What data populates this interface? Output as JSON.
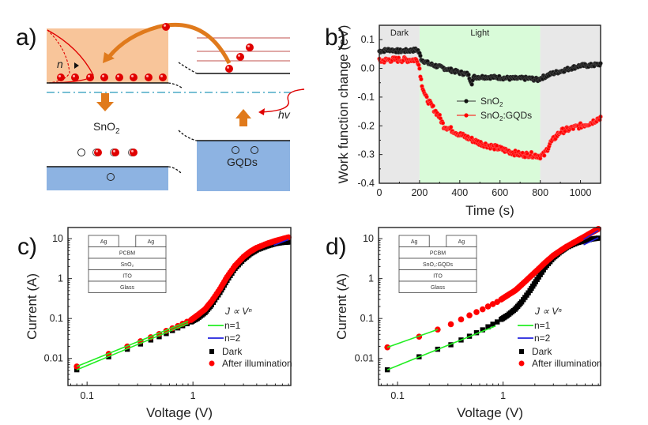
{
  "panels": {
    "a": {
      "label": "a)",
      "snO2_label": "SnO",
      "snO2_sub": "2",
      "gqds_label": "GQDs",
      "n_label": "n",
      "hv_label": "hv",
      "colors": {
        "snO2_band": "#f8c59a",
        "valence": "#8db3e2",
        "electron": "#e00000",
        "arrow": "#e07a1c",
        "fermi": "#4bacc6",
        "levels": "#c0504d"
      }
    }
  },
  "chart_data": [
    {
      "id": "b",
      "panel_label": "b)",
      "type": "scatter",
      "title": "",
      "xlabel": "Time (s)",
      "ylabel": "Work function change (eV)",
      "xlim": [
        0,
        1100
      ],
      "ylim": [
        -0.4,
        0.15
      ],
      "xticks": [
        0,
        200,
        400,
        600,
        800,
        1000
      ],
      "yticks": [
        -0.4,
        -0.3,
        -0.2,
        -0.1,
        0.0,
        0.1
      ],
      "ytick_labels": [
        "-0.4",
        "-0.3",
        "-0.2",
        "-0.1",
        "0.0",
        "0.1"
      ],
      "regions": [
        {
          "label": "Dark",
          "from": 0,
          "to": 200,
          "color": "#e8e8e8"
        },
        {
          "label": "Light",
          "from": 200,
          "to": 800,
          "color": "#d9fbd9"
        },
        {
          "label": "",
          "from": 800,
          "to": 1100,
          "color": "#e8e8e8"
        }
      ],
      "legend_position": "center",
      "series": [
        {
          "name": "SnO2",
          "display": "SnO",
          "sub": "2",
          "color": "#111111",
          "x": [
            0,
            50,
            100,
            150,
            190,
            200,
            210,
            250,
            300,
            350,
            400,
            440,
            460,
            470,
            500,
            550,
            600,
            650,
            700,
            750,
            790,
            800,
            850,
            900,
            950,
            1000,
            1050,
            1100
          ],
          "y": [
            0.06,
            0.065,
            0.06,
            0.062,
            0.065,
            0.05,
            0.03,
            0.015,
            0.005,
            -0.005,
            -0.015,
            -0.02,
            -0.05,
            -0.03,
            -0.03,
            -0.03,
            -0.032,
            -0.035,
            -0.035,
            -0.035,
            -0.04,
            -0.035,
            -0.02,
            -0.01,
            0.0,
            0.01,
            0.01,
            0.015
          ]
        },
        {
          "name": "SnO2:GQDs",
          "display": "SnO",
          "sub": "2",
          "suffix": ":GQDs",
          "color": "#ff0000",
          "x": [
            0,
            50,
            100,
            150,
            190,
            200,
            210,
            230,
            250,
            270,
            300,
            320,
            350,
            400,
            450,
            500,
            550,
            600,
            650,
            700,
            750,
            800,
            820,
            850,
            900,
            950,
            1000,
            1050,
            1100
          ],
          "y": [
            0.025,
            0.03,
            0.03,
            0.03,
            0.03,
            0.0,
            -0.05,
            -0.1,
            -0.12,
            -0.14,
            -0.17,
            -0.2,
            -0.21,
            -0.23,
            -0.245,
            -0.26,
            -0.27,
            -0.28,
            -0.29,
            -0.3,
            -0.3,
            -0.305,
            -0.3,
            -0.26,
            -0.22,
            -0.21,
            -0.2,
            -0.19,
            -0.17
          ]
        }
      ]
    },
    {
      "id": "c",
      "panel_label": "c)",
      "type": "scatter",
      "xscale": "log",
      "yscale": "log",
      "xlabel": "Voltage (V)",
      "ylabel": "Current (A)",
      "xlim": [
        0.066,
        8.4
      ],
      "ylim": [
        0.0021,
        19
      ],
      "xticks": [
        0.1,
        1
      ],
      "xtick_labels": [
        "0.1",
        "1"
      ],
      "yticks": [
        0.01,
        0.1,
        1,
        10
      ],
      "ytick_labels": [
        "0.01",
        "0.1",
        "1",
        "10"
      ],
      "legend_position": "bottom-right",
      "legend": {
        "formula": "J ∝ Vⁿ",
        "n1": "n=1",
        "n2": "n=2",
        "dark": "Dark",
        "illum": "After illumination"
      },
      "inset_layers": [
        "PCBM",
        "SnO₂",
        "ITO",
        "Glass"
      ],
      "inset_top": [
        "Ag",
        "Ag"
      ],
      "series": [
        {
          "name": "Dark",
          "marker": "square",
          "color": "#000000",
          "x": [
            0.08,
            0.16,
            0.24,
            0.32,
            0.4,
            0.48,
            0.56,
            0.64,
            0.72,
            0.8,
            0.88,
            0.96,
            1.1,
            1.3,
            1.5,
            1.8,
            2.1,
            2.5,
            3.0,
            3.5,
            4.0,
            5.0,
            6.0,
            7.0,
            8.0
          ],
          "y": [
            0.0052,
            0.011,
            0.017,
            0.023,
            0.029,
            0.035,
            0.042,
            0.05,
            0.058,
            0.066,
            0.074,
            0.082,
            0.1,
            0.14,
            0.22,
            0.45,
            0.9,
            1.8,
            3.0,
            4.2,
            5.2,
            6.5,
            7.5,
            8.0,
            8.2
          ]
        },
        {
          "name": "After illumination",
          "marker": "circle",
          "color": "#ff0000",
          "x": [
            0.08,
            0.16,
            0.24,
            0.32,
            0.4,
            0.48,
            0.56,
            0.64,
            0.72,
            0.8,
            0.88,
            0.96,
            1.1,
            1.3,
            1.5,
            1.8,
            2.1,
            2.5,
            3.0,
            3.5,
            4.0,
            5.0,
            6.0,
            7.0,
            8.0
          ],
          "y": [
            0.0063,
            0.013,
            0.02,
            0.027,
            0.034,
            0.041,
            0.049,
            0.057,
            0.065,
            0.074,
            0.083,
            0.092,
            0.12,
            0.17,
            0.27,
            0.55,
            1.1,
            2.1,
            3.5,
            4.8,
            5.9,
            7.5,
            8.8,
            9.8,
            10.8
          ]
        },
        {
          "name": "n=1 fit (dark)",
          "type": "line",
          "color": "#22ee22",
          "x": [
            0.08,
            0.9
          ],
          "y": [
            0.0052,
            0.075
          ]
        },
        {
          "name": "n=1 fit (illum)",
          "type": "line",
          "color": "#22ee22",
          "x": [
            0.08,
            0.9
          ],
          "y": [
            0.0063,
            0.085
          ]
        },
        {
          "name": "n=2 fit",
          "type": "line",
          "color": "#2222dd",
          "x": [
            5.8,
            8.0
          ],
          "y": [
            6.8,
            9.5
          ]
        }
      ]
    },
    {
      "id": "d",
      "panel_label": "d)",
      "type": "scatter",
      "xscale": "log",
      "yscale": "log",
      "xlabel": "Voltage (V)",
      "ylabel": "Current (A)",
      "xlim": [
        0.066,
        8.4
      ],
      "ylim": [
        0.0021,
        19
      ],
      "xticks": [
        0.1,
        1
      ],
      "xtick_labels": [
        "0.1",
        "1"
      ],
      "yticks": [
        0.01,
        0.1,
        1,
        10
      ],
      "ytick_labels": [
        "0.01",
        "0.1",
        "1",
        "10"
      ],
      "legend_position": "bottom-right",
      "legend": {
        "formula": "J ∝ Vⁿ",
        "n1": "n=1",
        "n2": "n=2",
        "dark": "Dark",
        "illum": "After illumination"
      },
      "inset_layers": [
        "PCBM",
        "SnO₂:GQDs",
        "ITO",
        "Glass"
      ],
      "inset_top": [
        "Ag",
        "Ag"
      ],
      "series": [
        {
          "name": "Dark",
          "marker": "square",
          "color": "#000000",
          "x": [
            0.08,
            0.16,
            0.24,
            0.32,
            0.4,
            0.48,
            0.56,
            0.64,
            0.72,
            0.8,
            0.88,
            0.96,
            1.1,
            1.3,
            1.5,
            1.8,
            2.1,
            2.5,
            3.0,
            3.5,
            4.0,
            5.0,
            6.0,
            7.0,
            8.0
          ],
          "y": [
            0.0052,
            0.011,
            0.017,
            0.022,
            0.029,
            0.036,
            0.044,
            0.052,
            0.062,
            0.072,
            0.082,
            0.095,
            0.12,
            0.17,
            0.26,
            0.5,
            0.95,
            1.9,
            3.3,
            4.7,
            6.0,
            7.8,
            9.0,
            9.8,
            10.3
          ]
        },
        {
          "name": "After illumination",
          "marker": "circle",
          "color": "#ff0000",
          "x": [
            0.08,
            0.16,
            0.24,
            0.32,
            0.4,
            0.48,
            0.56,
            0.64,
            0.72,
            0.8,
            0.88,
            0.96,
            1.1,
            1.3,
            1.5,
            1.8,
            2.1,
            2.5,
            3.0,
            3.5,
            4.0,
            5.0,
            6.0,
            7.0,
            8.0
          ],
          "y": [
            0.019,
            0.035,
            0.053,
            0.072,
            0.095,
            0.12,
            0.145,
            0.17,
            0.2,
            0.23,
            0.26,
            0.3,
            0.38,
            0.5,
            0.7,
            1.1,
            1.6,
            2.5,
            3.8,
            5.0,
            6.3,
            8.8,
            11.5,
            14.5,
            17.5
          ]
        },
        {
          "name": "n=1 fit (dark)",
          "type": "line",
          "color": "#22ee22",
          "x": [
            0.08,
            0.85
          ],
          "y": [
            0.0052,
            0.065
          ]
        },
        {
          "name": "n=1 fit (illum)",
          "type": "line",
          "color": "#22ee22",
          "x": [
            0.08,
            0.24
          ],
          "y": [
            0.019,
            0.053
          ]
        },
        {
          "name": "n=2 fit (dark)",
          "type": "line",
          "color": "#2222dd",
          "x": [
            5.8,
            8.0
          ],
          "y": [
            7.0,
            10.5
          ]
        },
        {
          "name": "n=2 fit (illum)",
          "type": "line",
          "color": "#2222dd",
          "x": [
            5.8,
            8.0
          ],
          "y": [
            9.5,
            16.0
          ]
        }
      ]
    }
  ]
}
